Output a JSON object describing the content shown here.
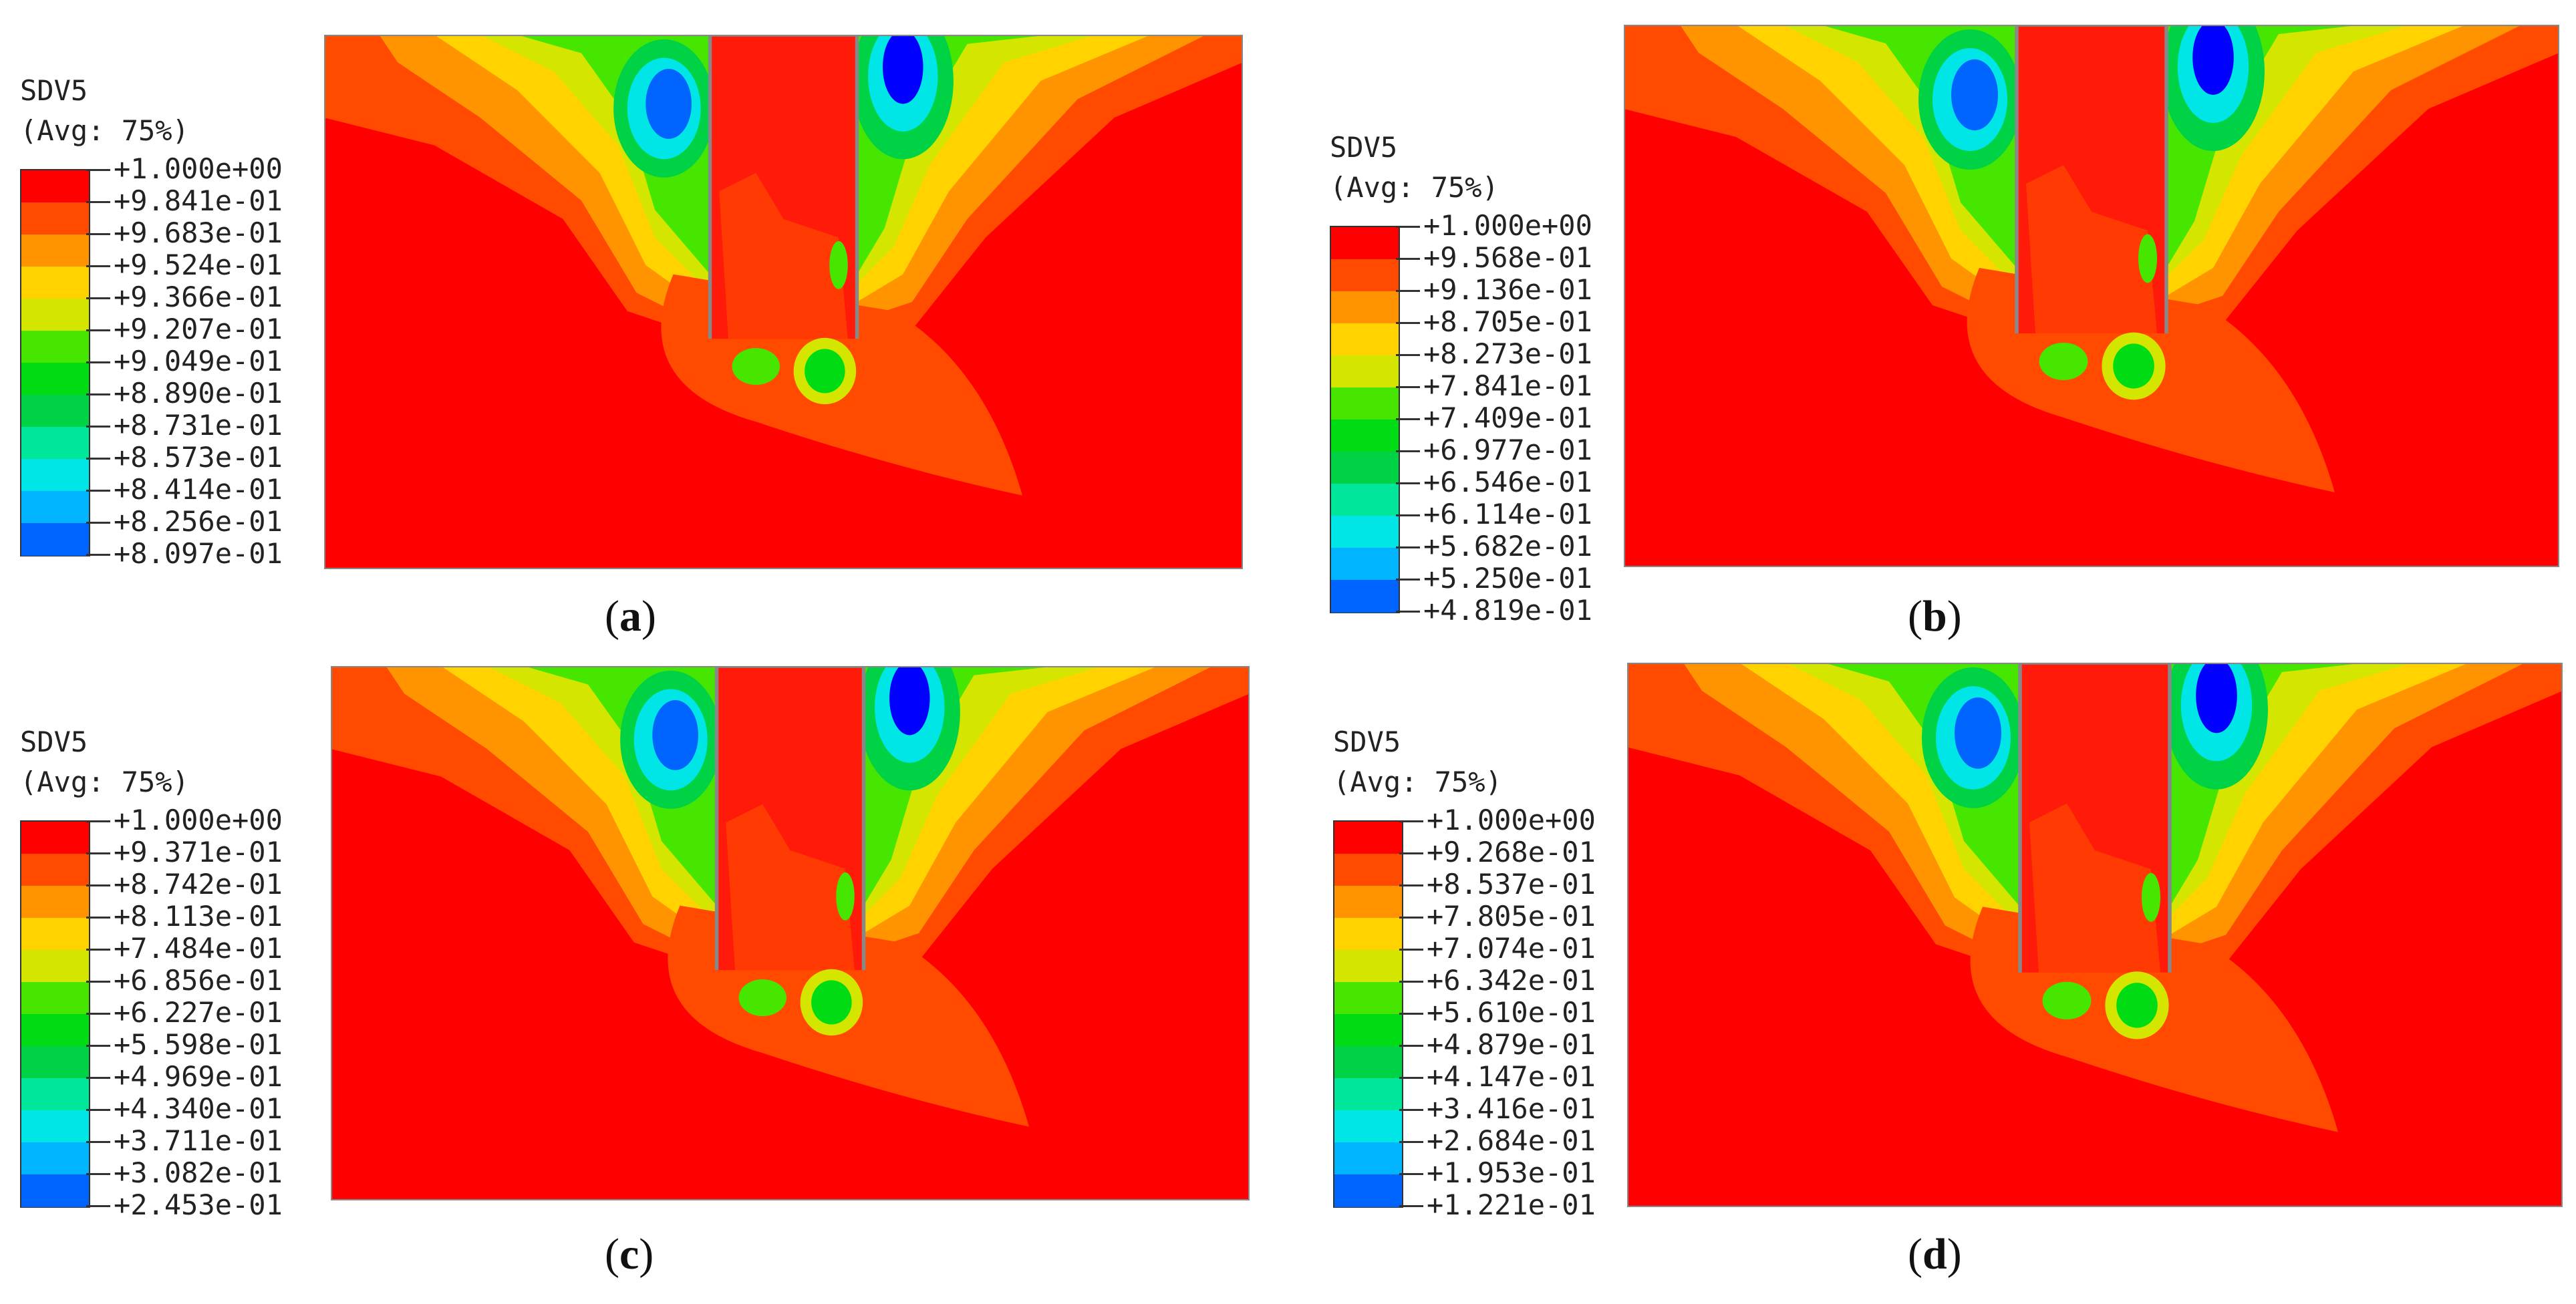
{
  "colors": {
    "band": [
      "#ff0000",
      "#ff4a00",
      "#ff9400",
      "#ffd200",
      "#d4e600",
      "#46e600",
      "#00dc14",
      "#00d246",
      "#00e69a",
      "#00e6e6",
      "#00b4ff",
      "#0064ff",
      "#0000ff"
    ],
    "frame": "#888888",
    "pile": "#ff1a0a"
  },
  "panels": [
    {
      "id": "a",
      "legend_title": "SDV5",
      "legend_subtitle": "(Avg: 75%)",
      "levels": [
        "+1.000e+00",
        "+9.841e-01",
        "+9.683e-01",
        "+9.524e-01",
        "+9.366e-01",
        "+9.207e-01",
        "+9.049e-01",
        "+8.890e-01",
        "+8.731e-01",
        "+8.573e-01",
        "+8.414e-01",
        "+8.256e-01",
        "+8.097e-01"
      ],
      "caption_open": "(",
      "caption_letter": "a",
      "caption_close": ")"
    },
    {
      "id": "b",
      "legend_title": "SDV5",
      "legend_subtitle": "(Avg: 75%)",
      "levels": [
        "+1.000e+00",
        "+9.568e-01",
        "+9.136e-01",
        "+8.705e-01",
        "+8.273e-01",
        "+7.841e-01",
        "+7.409e-01",
        "+6.977e-01",
        "+6.546e-01",
        "+6.114e-01",
        "+5.682e-01",
        "+5.250e-01",
        "+4.819e-01"
      ],
      "caption_open": "(",
      "caption_letter": "b",
      "caption_close": ")"
    },
    {
      "id": "c",
      "legend_title": "SDV5",
      "legend_subtitle": "(Avg: 75%)",
      "levels": [
        "+1.000e+00",
        "+9.371e-01",
        "+8.742e-01",
        "+8.113e-01",
        "+7.484e-01",
        "+6.856e-01",
        "+6.227e-01",
        "+5.598e-01",
        "+4.969e-01",
        "+4.340e-01",
        "+3.711e-01",
        "+3.082e-01",
        "+2.453e-01"
      ],
      "caption_open": "(",
      "caption_letter": "c",
      "caption_close": ")"
    },
    {
      "id": "d",
      "legend_title": "SDV5",
      "legend_subtitle": "(Avg: 75%)",
      "levels": [
        "+1.000e+00",
        "+9.268e-01",
        "+8.537e-01",
        "+7.805e-01",
        "+7.074e-01",
        "+6.342e-01",
        "+5.610e-01",
        "+4.879e-01",
        "+4.147e-01",
        "+3.416e-01",
        "+2.684e-01",
        "+1.953e-01",
        "+1.221e-01"
      ],
      "caption_open": "(",
      "caption_letter": "d",
      "caption_close": ")"
    }
  ]
}
